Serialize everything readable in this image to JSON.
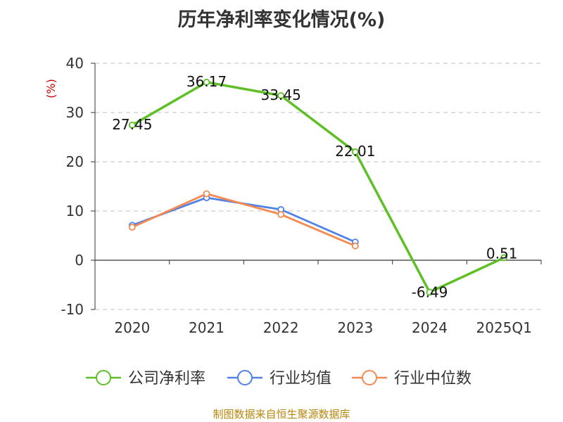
{
  "chart_data": {
    "type": "line",
    "title": "历年净利率变化情况(%)",
    "ylabel": "(%)",
    "categories": [
      "2020",
      "2021",
      "2022",
      "2023",
      "2024",
      "2025Q1"
    ],
    "ylim": [
      -10,
      40
    ],
    "yticks": [
      -10,
      0,
      10,
      20,
      30,
      40
    ],
    "grid": true,
    "legend_position": "bottom",
    "series": [
      {
        "name": "公司净利率",
        "color": "#5ec026",
        "values": [
          27.45,
          36.17,
          33.45,
          22.01,
          -6.49,
          0.51
        ],
        "labels": [
          "27.45",
          "36.17",
          "33.45",
          "22.01",
          "-6.49",
          "0.51"
        ]
      },
      {
        "name": "行业均值",
        "color": "#4f81e6",
        "values": [
          7.1,
          12.7,
          10.3,
          3.7,
          null,
          null
        ]
      },
      {
        "name": "行业中位数",
        "color": "#f5894f",
        "values": [
          6.7,
          13.5,
          9.3,
          2.9,
          null,
          null
        ]
      }
    ]
  },
  "footer": "制图数据来自恒生聚源数据库",
  "colors": {
    "unit_label": "#cc0000",
    "grid": "#cccccc",
    "axis": "#333333"
  }
}
